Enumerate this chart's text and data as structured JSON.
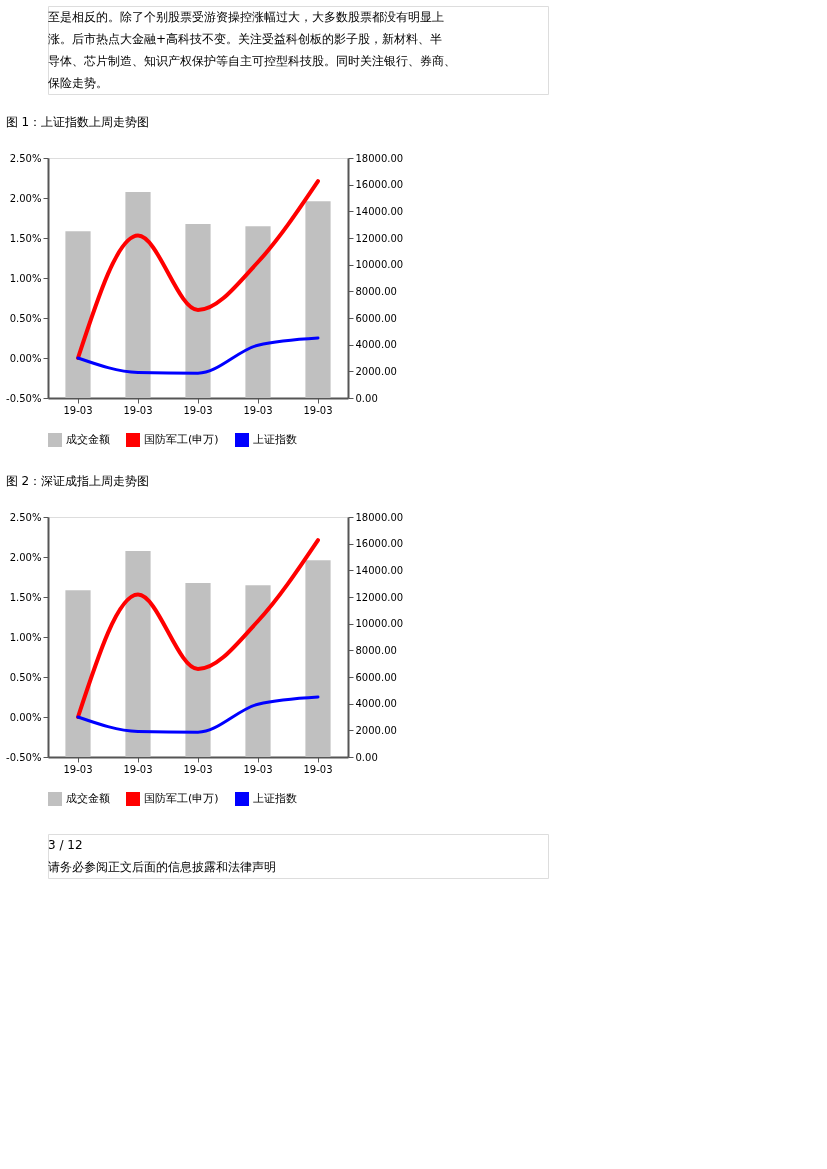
{
  "chart_data": [
    {
      "type": "bar",
      "title": "图 1：上证指数上周走势图",
      "annotations": [
        "至是相反的。除了个别股票受游资操控涨幅过大，大多数股票都没有明显上",
        "涨。后市热点大金融+高科技不变。关注受益科创板的影子股，新材料、半",
        "导体、芯片制造、知识产权保护等自主可控型科技股。同时关注银行、券商、",
        "保险走势。"
      ],
      "categories": [
        "19-03",
        "19-03",
        "19-03",
        "19-03",
        "19-03"
      ],
      "series": [
        {
          "name": "成交金额",
          "axis": "y2",
          "color": "#c0c0c0",
          "values": [
            12500,
            15450,
            13050,
            12880,
            14760
          ]
        },
        {
          "name": "国防军工(申万)",
          "type": "line",
          "color": "#ff0000",
          "values": [
            0.0,
            1.53,
            0.6,
            1.2,
            2.21
          ]
        },
        {
          "name": "上证指数",
          "type": "line",
          "color": "#0000ff",
          "values": [
            0.0,
            -0.18,
            -0.19,
            0.16,
            0.25
          ]
        }
      ],
      "ylim": [
        -0.5,
        2.5
      ],
      "yticks": [
        {
          "value": -0.5,
          "label": "-0.50%"
        },
        {
          "value": 0,
          "label": "0.00%"
        },
        {
          "value": 0.5,
          "label": "0.50%"
        },
        {
          "value": 1,
          "label": "1.00%"
        },
        {
          "value": 1.5,
          "label": "1.50%"
        },
        {
          "value": 2,
          "label": "2.00%"
        },
        {
          "value": 2.5,
          "label": "2.50%"
        }
      ],
      "y2lim": [
        0,
        18000
      ],
      "y2ticks": [
        {
          "value": 0,
          "label": "0.00"
        },
        {
          "value": 2000,
          "label": "2000.00"
        },
        {
          "value": 4000,
          "label": "4000.00"
        },
        {
          "value": 6000,
          "label": "6000.00"
        },
        {
          "value": 8000,
          "label": "8000.00"
        },
        {
          "value": 10000,
          "label": "10000.00"
        },
        {
          "value": 12000,
          "label": "12000.00"
        },
        {
          "value": 14000,
          "label": "14000.00"
        },
        {
          "value": 16000,
          "label": "16000.00"
        },
        {
          "value": 18000,
          "label": "18000.00"
        }
      ],
      "legend": "bottom",
      "grid": false
    },
    {
      "type": "bar",
      "title": "图 2：深证成指上周走势图",
      "annotations": [
        "3 / 12",
        "请务必参阅正文后面的信息披露和法律声明"
      ],
      "categories": [
        "19-03",
        "19-03",
        "19-03",
        "19-03",
        "19-03"
      ],
      "series": [
        {
          "name": "成交金额",
          "axis": "y2",
          "color": "#c0c0c0",
          "values": [
            12500,
            15450,
            13050,
            12880,
            14760
          ]
        },
        {
          "name": "国防军工(申万)",
          "type": "line",
          "color": "#ff0000",
          "values": [
            0.0,
            1.53,
            0.6,
            1.2,
            2.21
          ]
        },
        {
          "name": "上证指数",
          "type": "line",
          "color": "#0000ff",
          "values": [
            0.0,
            -0.18,
            -0.19,
            0.16,
            0.25
          ]
        }
      ],
      "ylim": [
        -0.5,
        2.5
      ],
      "yticks": [
        {
          "value": -0.5,
          "label": "-0.50%"
        },
        {
          "value": 0,
          "label": "0.00%"
        },
        {
          "value": 0.5,
          "label": "0.50%"
        },
        {
          "value": 1,
          "label": "1.00%"
        },
        {
          "value": 1.5,
          "label": "1.50%"
        },
        {
          "value": 2,
          "label": "2.00%"
        },
        {
          "value": 2.5,
          "label": "2.50%"
        }
      ],
      "y2lim": [
        0,
        18000
      ],
      "y2ticks": [
        {
          "value": 0,
          "label": "0.00"
        },
        {
          "value": 2000,
          "label": "2000.00"
        },
        {
          "value": 4000,
          "label": "4000.00"
        },
        {
          "value": 6000,
          "label": "6000.00"
        },
        {
          "value": 8000,
          "label": "8000.00"
        },
        {
          "value": 10000,
          "label": "10000.00"
        },
        {
          "value": 12000,
          "label": "12000.00"
        },
        {
          "value": 14000,
          "label": "14000.00"
        },
        {
          "value": 16000,
          "label": "16000.00"
        },
        {
          "value": 18000,
          "label": "18000.00"
        }
      ],
      "legend": "bottom",
      "grid": false
    }
  ]
}
